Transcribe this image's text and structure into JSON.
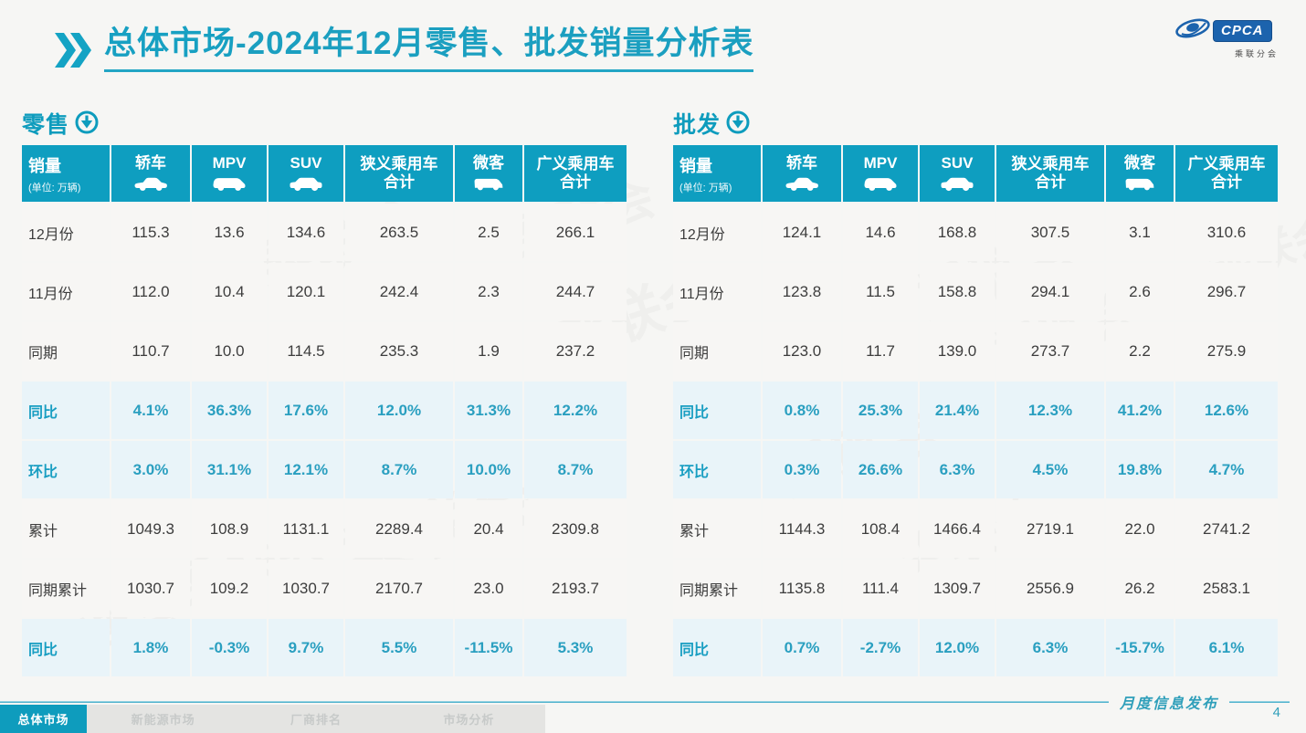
{
  "page": {
    "title_bold": "总体市场",
    "title_rest": "-2024年12月零售、批发销量分析表"
  },
  "logo": {
    "name": "CPCA",
    "subtitle": "乘联分会"
  },
  "watermark": {
    "text": "乘联会"
  },
  "table_columns": {
    "first": {
      "title": "销量",
      "unit": "(单位: 万辆)"
    },
    "cols": [
      {
        "label": "轿车",
        "icon": "sedan-icon"
      },
      {
        "label": "MPV",
        "icon": "mpv-icon"
      },
      {
        "label": "SUV",
        "icon": "suv-icon"
      },
      {
        "label": "狭义乘用车",
        "sub": "合计",
        "icon": null
      },
      {
        "label": "微客",
        "icon": "microvan-icon"
      },
      {
        "label": "广义乘用车",
        "sub": "合计",
        "icon": null
      }
    ]
  },
  "tables": [
    {
      "section": "零售",
      "rows": [
        {
          "label": "12月份",
          "style": "num",
          "values": [
            "115.3",
            "13.6",
            "134.6",
            "263.5",
            "2.5",
            "266.1"
          ]
        },
        {
          "label": "11月份",
          "style": "num",
          "values": [
            "112.0",
            "10.4",
            "120.1",
            "242.4",
            "2.3",
            "244.7"
          ]
        },
        {
          "label": "同期",
          "style": "num",
          "values": [
            "110.7",
            "10.0",
            "114.5",
            "235.3",
            "1.9",
            "237.2"
          ]
        },
        {
          "label": "同比",
          "style": "pct",
          "values": [
            "4.1%",
            "36.3%",
            "17.6%",
            "12.0%",
            "31.3%",
            "12.2%"
          ]
        },
        {
          "label": "环比",
          "style": "pct",
          "values": [
            "3.0%",
            "31.1%",
            "12.1%",
            "8.7%",
            "10.0%",
            "8.7%"
          ]
        },
        {
          "label": "累计",
          "style": "num",
          "values": [
            "1049.3",
            "108.9",
            "1131.1",
            "2289.4",
            "20.4",
            "2309.8"
          ]
        },
        {
          "label": "同期累计",
          "style": "num",
          "values": [
            "1030.7",
            "109.2",
            "1030.7",
            "2170.7",
            "23.0",
            "2193.7"
          ]
        },
        {
          "label": "同比",
          "style": "pct",
          "values": [
            "1.8%",
            "-0.3%",
            "9.7%",
            "5.5%",
            "-11.5%",
            "5.3%"
          ]
        }
      ]
    },
    {
      "section": "批发",
      "rows": [
        {
          "label": "12月份",
          "style": "num",
          "values": [
            "124.1",
            "14.6",
            "168.8",
            "307.5",
            "3.1",
            "310.6"
          ]
        },
        {
          "label": "11月份",
          "style": "num",
          "values": [
            "123.8",
            "11.5",
            "158.8",
            "294.1",
            "2.6",
            "296.7"
          ]
        },
        {
          "label": "同期",
          "style": "num",
          "values": [
            "123.0",
            "11.7",
            "139.0",
            "273.7",
            "2.2",
            "275.9"
          ]
        },
        {
          "label": "同比",
          "style": "pct",
          "values": [
            "0.8%",
            "25.3%",
            "21.4%",
            "12.3%",
            "41.2%",
            "12.6%"
          ]
        },
        {
          "label": "环比",
          "style": "pct",
          "values": [
            "0.3%",
            "26.6%",
            "6.3%",
            "4.5%",
            "19.8%",
            "4.7%"
          ]
        },
        {
          "label": "累计",
          "style": "num",
          "values": [
            "1144.3",
            "108.4",
            "1466.4",
            "2719.1",
            "22.0",
            "2741.2"
          ]
        },
        {
          "label": "同期累计",
          "style": "num",
          "values": [
            "1135.8",
            "111.4",
            "1309.7",
            "2556.9",
            "26.2",
            "2583.1"
          ]
        },
        {
          "label": "同比",
          "style": "pct",
          "values": [
            "0.7%",
            "-2.7%",
            "12.0%",
            "6.3%",
            "-15.7%",
            "6.1%"
          ]
        }
      ]
    }
  ],
  "footer": {
    "note": "月度信息发布",
    "page_number": "4",
    "tabs": [
      {
        "label": "总体市场",
        "active": true
      },
      {
        "label": "新能源市场",
        "active": false
      },
      {
        "label": "厂商排名",
        "active": false
      },
      {
        "label": "市场分析",
        "active": false
      }
    ]
  }
}
